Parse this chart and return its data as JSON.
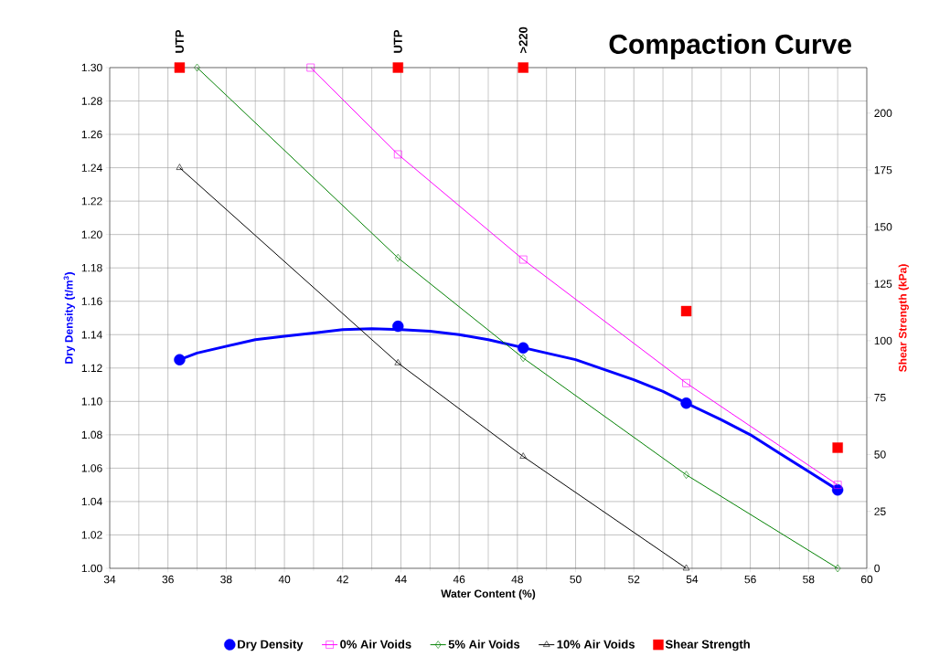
{
  "chart_data": {
    "type": "line",
    "title": "Compaction Curve",
    "xlabel": "Water Content (%)",
    "ylabel": "Dry Density (t/m$^{3}$)",
    "y2label": "Shear Strength (kPa)",
    "xlim": [
      34,
      60
    ],
    "xticks": [
      34,
      36,
      38,
      40,
      42,
      44,
      46,
      48,
      50,
      52,
      54,
      56,
      58,
      60
    ],
    "ylim": [
      1.0,
      1.3
    ],
    "yticks": [
      {
        "value": 1.0,
        "label": "1.00"
      },
      {
        "value": 1.02,
        "label": "1.02"
      },
      {
        "value": 1.04,
        "label": "1.04"
      },
      {
        "value": 1.06,
        "label": "1.06"
      },
      {
        "value": 1.08,
        "label": "1.08"
      },
      {
        "value": 1.1,
        "label": "1.10"
      },
      {
        "value": 1.12,
        "label": "1.12"
      },
      {
        "value": 1.14,
        "label": "1.14"
      },
      {
        "value": 1.16,
        "label": "1.16"
      },
      {
        "value": 1.18,
        "label": "1.18"
      },
      {
        "value": 1.2,
        "label": "1.20"
      },
      {
        "value": 1.22,
        "label": "1.22"
      },
      {
        "value": 1.24,
        "label": "1.24"
      },
      {
        "value": 1.26,
        "label": "1.26"
      },
      {
        "value": 1.28,
        "label": "1.28"
      },
      {
        "value": 1.3,
        "label": "1.30"
      }
    ],
    "y2lim": [
      0,
      220
    ],
    "y2ticks": [
      0,
      25,
      50,
      75,
      100,
      125,
      150,
      175,
      200
    ],
    "grid": true,
    "legend": "bottom",
    "line_style": "solid",
    "series": [
      {
        "name": "Dry Density",
        "type": "scatter",
        "marker": "circle",
        "color": "#0000ff",
        "x": [
          36.4,
          43.9,
          48.2,
          53.8,
          59.0
        ],
        "values": [
          1.125,
          1.145,
          1.132,
          1.099,
          1.047
        ]
      },
      {
        "marker": "none",
        "color": "#0000ff",
        "x": [
          36.4,
          37,
          38,
          39,
          40,
          41,
          42,
          43,
          44,
          45,
          46,
          47,
          48,
          49,
          50,
          51,
          52,
          53,
          53.8,
          55,
          56,
          57,
          58,
          59.0
        ],
        "values": [
          1.125,
          1.129,
          1.133,
          1.137,
          1.139,
          1.141,
          1.143,
          1.1435,
          1.143,
          1.142,
          1.14,
          1.137,
          1.133,
          1.129,
          1.125,
          1.119,
          1.113,
          1.106,
          1.099,
          1.089,
          1.08,
          1.069,
          1.058,
          1.047
        ]
      },
      {
        "name": "0% Air Voids",
        "marker": "square",
        "color": "#ff00ff",
        "x": [
          40.9,
          43.9,
          48.2,
          53.8,
          59.0
        ],
        "values": [
          1.3,
          1.248,
          1.185,
          1.111,
          1.05
        ]
      },
      {
        "name": "5% Air Voids",
        "marker": "diamond",
        "color": "#008000",
        "x": [
          37.0,
          43.9,
          48.2,
          53.8,
          59.0
        ],
        "values": [
          1.3,
          1.186,
          1.126,
          1.056,
          1.0
        ]
      },
      {
        "name": "10% Air Voids",
        "marker": "triangle",
        "color": "#000000",
        "x": [
          36.4,
          43.9,
          48.2,
          53.8
        ],
        "values": [
          1.24,
          1.123,
          1.067,
          1.0
        ]
      },
      {
        "name": "Shear Strength",
        "type": "scatter",
        "marker": "square",
        "color": "#ff0000",
        "axis": "y2",
        "x": [
          36.4,
          43.9,
          48.2,
          53.8,
          59.0
        ],
        "values": [
          220,
          220,
          220,
          113,
          53
        ]
      }
    ],
    "annotations": [
      "UTP",
      "UTP",
      ">220"
    ]
  }
}
